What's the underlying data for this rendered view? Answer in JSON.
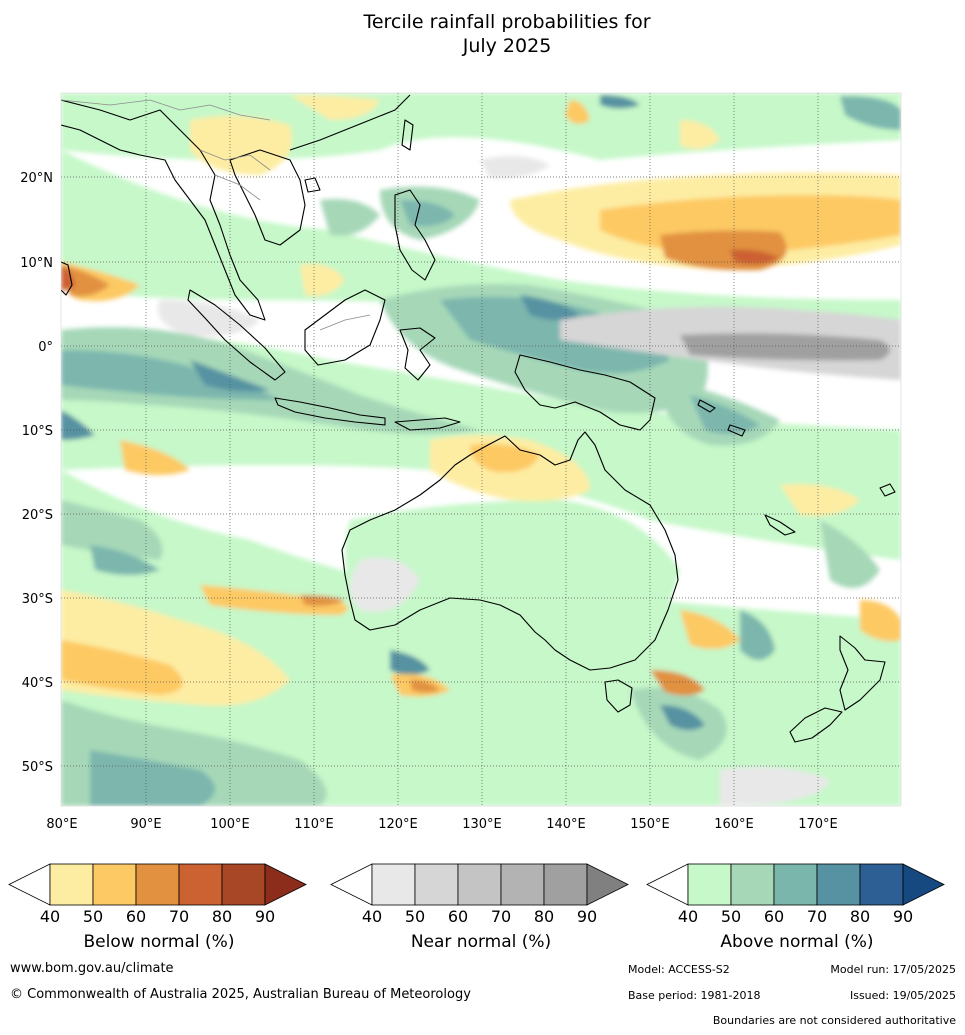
{
  "title": {
    "line1": "Tercile rainfall probabilities for",
    "line2": "July 2025"
  },
  "map": {
    "lat_labels": [
      "20°N",
      "10°N",
      "0°",
      "10°S",
      "20°S",
      "30°S",
      "40°S",
      "50°S"
    ],
    "lon_labels": [
      "80°E",
      "90°E",
      "100°E",
      "110°E",
      "120°E",
      "130°E",
      "140°E",
      "150°E",
      "160°E",
      "170°E"
    ],
    "colors": {
      "ocean_base": "#ffffff",
      "coast": "#000000",
      "borders": "#8a8a8a",
      "gridline": "#555555"
    }
  },
  "colorbars": [
    {
      "label": "Below normal (%)",
      "ticks": [
        "40",
        "50",
        "60",
        "70",
        "80",
        "90"
      ],
      "colors": [
        "#ffffff",
        "#fdeda3",
        "#fdc964",
        "#e1913f",
        "#cc6131",
        "#a84726",
        "#8c2d1b"
      ]
    },
    {
      "label": "Near normal (%)",
      "ticks": [
        "40",
        "50",
        "60",
        "70",
        "80",
        "90"
      ],
      "colors": [
        "#ffffff",
        "#e8e8e8",
        "#d6d6d6",
        "#c4c4c4",
        "#b3b3b3",
        "#a0a0a0",
        "#808080"
      ]
    },
    {
      "label": "Above normal (%)",
      "ticks": [
        "40",
        "50",
        "60",
        "70",
        "80",
        "90"
      ],
      "colors": [
        "#ffffff",
        "#c6f8c9",
        "#a6d8b8",
        "#7bb6ad",
        "#5792a2",
        "#2d5e94",
        "#16497f"
      ]
    }
  ],
  "footer": {
    "website": "www.bom.gov.au/climate",
    "copyright": "© Commonwealth of Australia 2025, Australian Bureau of Meteorology",
    "model": "Model: ACCESS-S2",
    "model_run": "Model run: 17/05/2025",
    "base_period": "Base period: 1981-2018",
    "issued": "Issued: 19/05/2025",
    "disclaimer": "Boundaries are not considered authoritative"
  }
}
